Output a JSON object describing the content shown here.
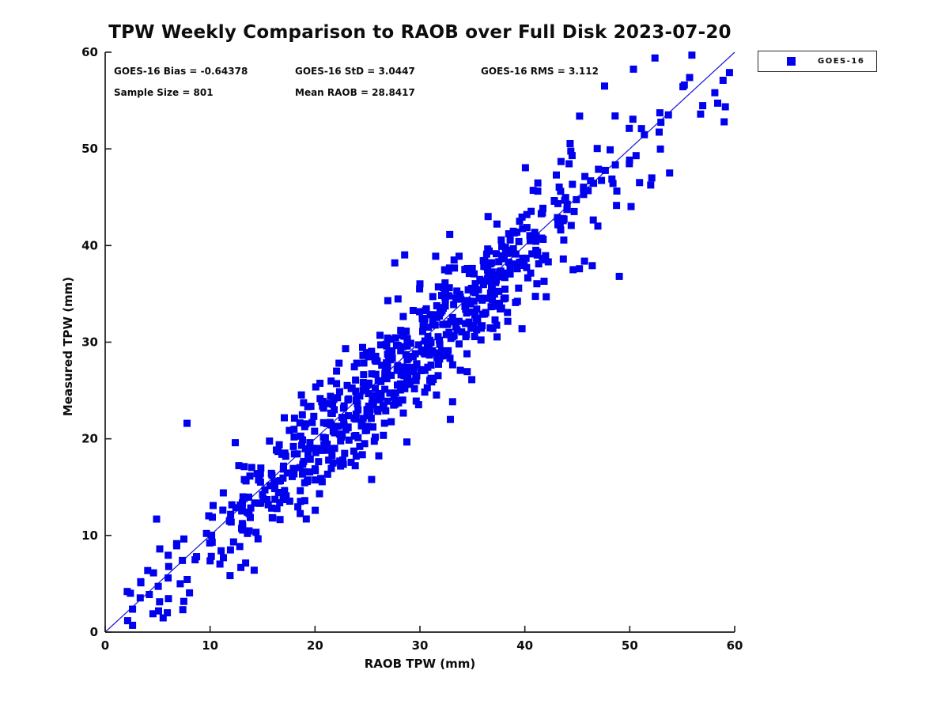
{
  "figure": {
    "title": "TPW Weekly Comparison to RAOB over Full Disk 2023-07-20",
    "stats": {
      "bias": "GOES-16 Bias = -0.64378",
      "std": "GOES-16 StD = 3.0447",
      "rms": "GOES-16 RMS = 3.112",
      "sample_size": "Sample Size = 801",
      "mean_raob": "Mean RAOB = 28.8417"
    },
    "xlabel": "RAOB TPW (mm)",
    "ylabel": "Measured TPW (mm)",
    "legend": {
      "entries": [
        {
          "label": "GOES-16",
          "marker": "filled-square-icon",
          "color": "#0000EE"
        }
      ]
    }
  },
  "chart_data": {
    "type": "scatter",
    "title": "TPW Weekly Comparison to RAOB over Full Disk 2023-07-20",
    "xlabel": "RAOB TPW (mm)",
    "ylabel": "Measured TPW (mm)",
    "xlim": [
      0,
      60
    ],
    "ylim": [
      0,
      60
    ],
    "x_ticks": [
      0,
      10,
      20,
      30,
      40,
      50,
      60
    ],
    "y_ticks": [
      0,
      10,
      20,
      30,
      40,
      50,
      60
    ],
    "grid": false,
    "legend_position": "outside-top-right",
    "identity_line": {
      "from": [
        0,
        0
      ],
      "to": [
        60,
        60
      ],
      "color": "#2323D6",
      "width": 1.3
    },
    "annotations": [
      "GOES-16 Bias = -0.64378",
      "GOES-16 StD = 3.0447",
      "GOES-16 RMS = 3.112",
      "Sample Size = 801",
      "Mean RAOB = 28.8417"
    ],
    "series": [
      {
        "name": "GOES-16",
        "marker": "filled-square",
        "marker_size_px": 9,
        "color": "#0000EE",
        "sample_size": 801,
        "bias": -0.64378,
        "std": 3.0447,
        "rms": 3.112,
        "mean_raob": 28.8417,
        "x_distribution": {
          "mean": 28.8417,
          "std": 11.2,
          "range": [
            1.8,
            59.6
          ]
        },
        "y_model": "y = x + bias + noise(std)",
        "notable_points": [
          [
            7.8,
            21.6
          ],
          [
            27.6,
            38.2
          ],
          [
            32.9,
            22.0
          ],
          [
            49.0,
            36.8
          ],
          [
            52.4,
            59.4
          ],
          [
            55.2,
            56.6
          ],
          [
            59.5,
            57.9
          ],
          [
            59.0,
            52.8
          ],
          [
            47.6,
            56.5
          ],
          [
            48.6,
            53.4
          ],
          [
            12.4,
            19.6
          ],
          [
            14.2,
            6.4
          ],
          [
            44.6,
            37.5
          ],
          [
            4.9,
            11.7
          ],
          [
            5.2,
            8.6
          ],
          [
            2.1,
            4.2
          ],
          [
            3.4,
            5.1
          ],
          [
            6.0,
            5.6
          ],
          [
            53.8,
            47.5
          ],
          [
            43.0,
            47.3
          ],
          [
            45.2,
            37.6
          ],
          [
            36.5,
            43.0
          ],
          [
            50.6,
            49.3
          ],
          [
            10.2,
            9.3
          ],
          [
            16.1,
            15.5
          ]
        ]
      }
    ]
  }
}
